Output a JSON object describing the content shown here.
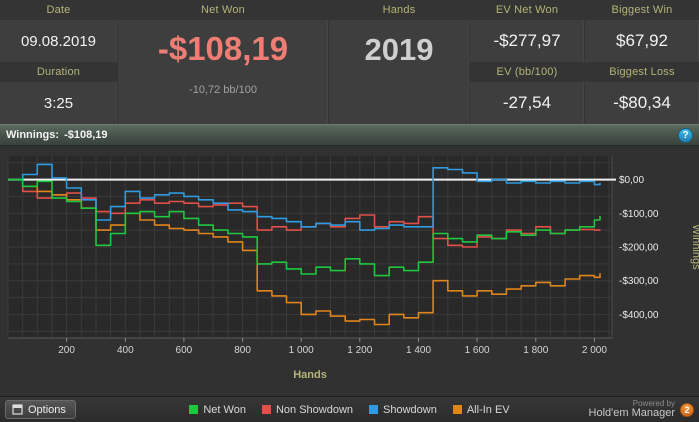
{
  "header": {
    "stats": {
      "date": {
        "label": "Date",
        "value": "09.08.2019"
      },
      "duration": {
        "label": "Duration",
        "value": "3:25"
      },
      "net_won": {
        "label": "Net Won",
        "value": "-$108,19",
        "sub": "-10,72 bb/100"
      },
      "hands": {
        "label": "Hands",
        "value": "2019"
      },
      "ev_net_won": {
        "label": "EV Net Won",
        "value": "-$277,97"
      },
      "ev_bb100": {
        "label": "EV (bb/100)",
        "value": "-27,54"
      },
      "biggest_win": {
        "label": "Biggest Win",
        "value": "$67,92"
      },
      "biggest_loss": {
        "label": "Biggest Loss",
        "value": "-$80,34"
      }
    },
    "label_color": "#b4b478",
    "net_won_color": "#ee7d74"
  },
  "winnings_bar": {
    "label": "Winnings:",
    "value": "-$108,19",
    "help_icon": "?"
  },
  "chart_data": {
    "type": "line",
    "title": "Winnings: -$108,19",
    "xlabel": "Hands",
    "ylabel": "Winnings",
    "xlim": [
      0,
      2060
    ],
    "ylim": [
      -470,
      70
    ],
    "grid": true,
    "grid_step_x": 50,
    "grid_step_y": 50,
    "plot_bg": "#292929",
    "grid_color": "#3a3a3a",
    "zero_line_value": 0,
    "zero_line_color": "#f2f2f2",
    "x_ticks": [
      200,
      400,
      600,
      800,
      1000,
      1200,
      1400,
      1600,
      1800,
      2000
    ],
    "x_tick_labels": [
      "200",
      "400",
      "600",
      "800",
      "1 000",
      "1 200",
      "1 400",
      "1 600",
      "1 800",
      "2 000"
    ],
    "y_ticks": [
      0,
      -100,
      -200,
      -300,
      -400
    ],
    "y_tick_labels": [
      "$0,00",
      "-$100,00",
      "-$200,00",
      "-$300,00",
      "-$400,00"
    ],
    "legend_position": "bottom",
    "x": [
      0,
      50,
      100,
      150,
      200,
      250,
      300,
      350,
      400,
      450,
      500,
      550,
      600,
      650,
      700,
      750,
      800,
      850,
      900,
      950,
      1000,
      1050,
      1100,
      1150,
      1200,
      1250,
      1300,
      1350,
      1400,
      1450,
      1500,
      1550,
      1600,
      1650,
      1700,
      1750,
      1800,
      1850,
      1900,
      1950,
      2000,
      2019
    ],
    "draw_order": [
      1,
      3,
      2,
      0
    ],
    "series": [
      {
        "name": "Net Won",
        "color": "#1ec83e",
        "y": [
          0,
          -20,
          -5,
          -55,
          -65,
          -85,
          -195,
          -160,
          -100,
          -95,
          -110,
          -95,
          -115,
          -135,
          -150,
          -160,
          -170,
          -250,
          -245,
          -265,
          -280,
          -260,
          -270,
          -235,
          -250,
          -285,
          -260,
          -270,
          -245,
          -160,
          -175,
          -185,
          -165,
          -175,
          -155,
          -165,
          -150,
          -160,
          -150,
          -140,
          -120,
          -108
        ]
      },
      {
        "name": "Non Showdown",
        "color": "#e04f48",
        "y": [
          0,
          -35,
          -55,
          -45,
          -40,
          -55,
          -95,
          -100,
          -70,
          -60,
          -70,
          -65,
          -70,
          -80,
          -75,
          -70,
          -80,
          -150,
          -140,
          -150,
          -140,
          -130,
          -140,
          -115,
          -105,
          -140,
          -125,
          -130,
          -110,
          -175,
          -195,
          -200,
          -170,
          -175,
          -150,
          -160,
          -140,
          -160,
          -150,
          -148,
          -150,
          -148
        ]
      },
      {
        "name": "Showdown",
        "color": "#2f9be0",
        "y": [
          0,
          15,
          45,
          5,
          -25,
          -60,
          -120,
          -80,
          -35,
          -55,
          -45,
          -40,
          -50,
          -60,
          -70,
          -90,
          -95,
          -110,
          -115,
          -125,
          -140,
          -130,
          -135,
          -125,
          -150,
          -145,
          -135,
          -140,
          -140,
          35,
          30,
          20,
          -5,
          0,
          -10,
          -5,
          -10,
          -5,
          -10,
          -5,
          -15,
          -10
        ]
      },
      {
        "name": "All-In EV",
        "color": "#e0841c",
        "y": [
          0,
          -20,
          -35,
          -45,
          -60,
          -85,
          -150,
          -135,
          -100,
          -120,
          -135,
          -145,
          -150,
          -160,
          -170,
          -185,
          -210,
          -330,
          -345,
          -365,
          -400,
          -390,
          -405,
          -420,
          -415,
          -430,
          -400,
          -410,
          -395,
          -300,
          -330,
          -345,
          -330,
          -340,
          -325,
          -315,
          -305,
          -315,
          -295,
          -285,
          -290,
          -278
        ]
      }
    ]
  },
  "footer": {
    "options_label": "Options",
    "legend": [
      {
        "label": "Net Won",
        "color": "#1ec83e"
      },
      {
        "label": "Non Showdown",
        "color": "#e04f48"
      },
      {
        "label": "Showdown",
        "color": "#2f9be0"
      },
      {
        "label": "All-In EV",
        "color": "#e0841c"
      }
    ],
    "powered_by": "Powered by",
    "brand": "Hold'em Manager",
    "brand_badge": "2"
  }
}
